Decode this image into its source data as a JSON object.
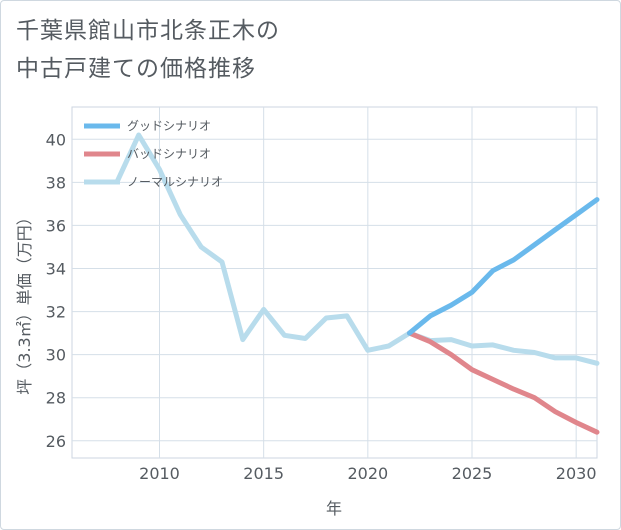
{
  "title_lines": [
    "千葉県館山市北条正木の",
    "中古戸建ての価格推移"
  ],
  "chart_data": {
    "type": "line",
    "title": "千葉県館山市北条正木の中古戸建ての価格推移",
    "xlabel": "年",
    "ylabel": "坪（3.3㎡）単価（万円）",
    "xlim": [
      2005.8,
      2031
    ],
    "ylim": [
      25.2,
      41.5
    ],
    "x_ticks": [
      2010,
      2015,
      2020,
      2025,
      2030
    ],
    "y_ticks": [
      26,
      28,
      30,
      32,
      34,
      36,
      38,
      40
    ],
    "grid": true,
    "legend_position": "top-left",
    "series": [
      {
        "name": "グッドシナリオ",
        "color": "#6ab9ec",
        "x": [
          2022,
          2023,
          2024,
          2025,
          2026,
          2027,
          2028,
          2029,
          2030,
          2031
        ],
        "y": [
          31.0,
          31.8,
          32.3,
          32.9,
          33.9,
          34.4,
          35.1,
          35.8,
          36.5,
          37.2
        ]
      },
      {
        "name": "バッドシナリオ",
        "color": "#e0868c",
        "x": [
          2022,
          2023,
          2024,
          2025,
          2026,
          2027,
          2028,
          2029,
          2030,
          2031
        ],
        "y": [
          31.0,
          30.6,
          30.0,
          29.3,
          28.85,
          28.4,
          28.0,
          27.35,
          26.85,
          26.4
        ]
      },
      {
        "name": "ノーマルシナリオ",
        "color": "#b8dcec",
        "x": [
          2008,
          2009,
          2010,
          2011,
          2012,
          2013,
          2014,
          2015,
          2016,
          2017,
          2018,
          2019,
          2020,
          2021,
          2022,
          2023,
          2024,
          2025,
          2026,
          2027,
          2028,
          2029,
          2030,
          2031
        ],
        "y": [
          38.1,
          40.2,
          38.6,
          36.5,
          35.0,
          34.3,
          30.7,
          32.1,
          30.9,
          30.75,
          31.7,
          31.8,
          30.2,
          30.4,
          31.0,
          30.65,
          30.7,
          30.4,
          30.45,
          30.2,
          30.1,
          29.85,
          29.85,
          29.6
        ]
      }
    ]
  }
}
